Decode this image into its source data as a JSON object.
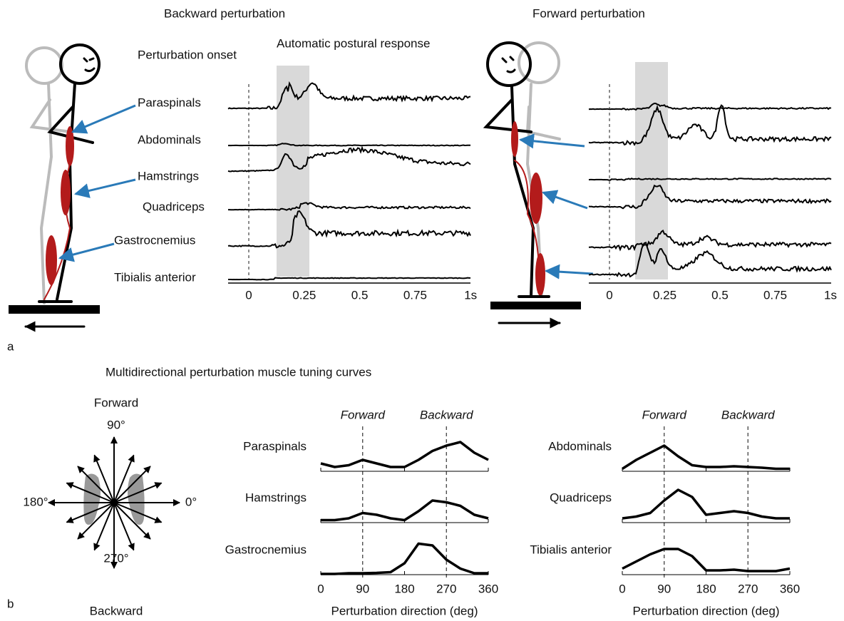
{
  "panel_a": {
    "label": "a",
    "backward": {
      "title": "Backward perturbation",
      "onset": "Perturbation onset",
      "response": "Automatic postural response",
      "muscles": [
        "Paraspinals",
        "Abdominals",
        "Hamstrings",
        "Quadriceps",
        "Gastrocnemius",
        "Tibialis anterior"
      ]
    },
    "forward": {
      "title": "Forward perturbation"
    },
    "time_ticks": [
      "0",
      "0.25",
      "0.5",
      "0.75",
      "1s"
    ]
  },
  "panel_b": {
    "label": "b",
    "title": "Multidirectional perturbation muscle tuning curves",
    "compass": {
      "forward": "Forward",
      "backward": "Backward",
      "deg90": "90°",
      "deg180": "180°",
      "deg0": "0°",
      "deg270": "270°"
    },
    "markers": [
      "Forward",
      "Backward"
    ],
    "xlabel": "Perturbation direction (deg)",
    "x": [
      0,
      30,
      60,
      90,
      120,
      150,
      180,
      210,
      240,
      270,
      300,
      330,
      360
    ],
    "xticks": [
      0,
      90,
      180,
      270,
      360
    ],
    "plots": [
      {
        "name": "Paraspinals",
        "values": [
          0.2,
          0.1,
          0.15,
          0.3,
          0.2,
          0.1,
          0.1,
          0.3,
          0.55,
          0.7,
          0.8,
          0.5,
          0.3
        ]
      },
      {
        "name": "Hamstrings",
        "values": [
          0.05,
          0.05,
          0.1,
          0.25,
          0.2,
          0.1,
          0.05,
          0.3,
          0.6,
          0.55,
          0.45,
          0.2,
          0.1
        ]
      },
      {
        "name": "Gastrocnemius",
        "values": [
          0,
          0,
          0.02,
          0.02,
          0.03,
          0.05,
          0.3,
          0.85,
          0.8,
          0.4,
          0.15,
          0.02,
          0.02
        ]
      },
      {
        "name": "Abdominals",
        "values": [
          0.05,
          0.3,
          0.5,
          0.7,
          0.4,
          0.15,
          0.1,
          0.1,
          0.12,
          0.1,
          0.08,
          0.05,
          0.05
        ]
      },
      {
        "name": "Quadriceps",
        "values": [
          0.1,
          0.15,
          0.25,
          0.6,
          0.9,
          0.7,
          0.2,
          0.25,
          0.3,
          0.25,
          0.15,
          0.1,
          0.1
        ]
      },
      {
        "name": "Tibialis anterior",
        "values": [
          0.15,
          0.35,
          0.55,
          0.7,
          0.7,
          0.5,
          0.1,
          0.1,
          0.12,
          0.08,
          0.08,
          0.08,
          0.15
        ]
      }
    ]
  }
}
